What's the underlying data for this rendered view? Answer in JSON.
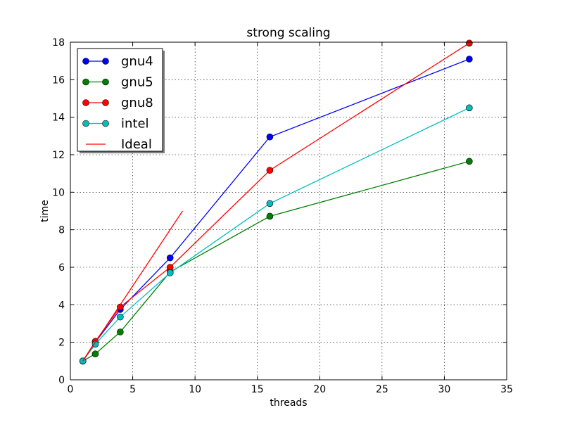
{
  "chart_data": {
    "type": "line",
    "title": "strong scaling",
    "xlabel": "threads",
    "ylabel": "time",
    "xlim": [
      0,
      35
    ],
    "ylim": [
      0,
      18
    ],
    "xticks": [
      0,
      5,
      10,
      15,
      20,
      25,
      30,
      35
    ],
    "yticks": [
      0,
      2,
      4,
      6,
      8,
      10,
      12,
      14,
      16,
      18
    ],
    "grid": true,
    "legend_position": "top-left",
    "series": [
      {
        "name": "gnu4",
        "color": "#0000ff",
        "marker": "circle",
        "x": [
          1,
          2,
          4,
          8,
          16,
          32
        ],
        "y": [
          1.0,
          2.0,
          3.75,
          6.5,
          12.95,
          17.1
        ]
      },
      {
        "name": "gnu5",
        "color": "#008000",
        "marker": "circle",
        "x": [
          1,
          2,
          4,
          8,
          16,
          32
        ],
        "y": [
          1.0,
          1.38,
          2.55,
          5.75,
          8.72,
          11.65
        ]
      },
      {
        "name": "gnu8",
        "color": "#ff0000",
        "marker": "circle",
        "x": [
          1,
          2,
          4,
          8,
          16,
          32
        ],
        "y": [
          1.0,
          2.05,
          3.88,
          6.0,
          11.17,
          17.95
        ]
      },
      {
        "name": "intel",
        "color": "#00bfbf",
        "marker": "circle",
        "x": [
          1,
          2,
          4,
          8,
          16,
          32
        ],
        "y": [
          1.0,
          1.9,
          3.35,
          5.7,
          9.4,
          14.5
        ]
      },
      {
        "name": "Ideal",
        "color": "#ff0000",
        "marker": "none",
        "x": [
          1,
          9
        ],
        "y": [
          1.0,
          9.0
        ]
      }
    ]
  }
}
